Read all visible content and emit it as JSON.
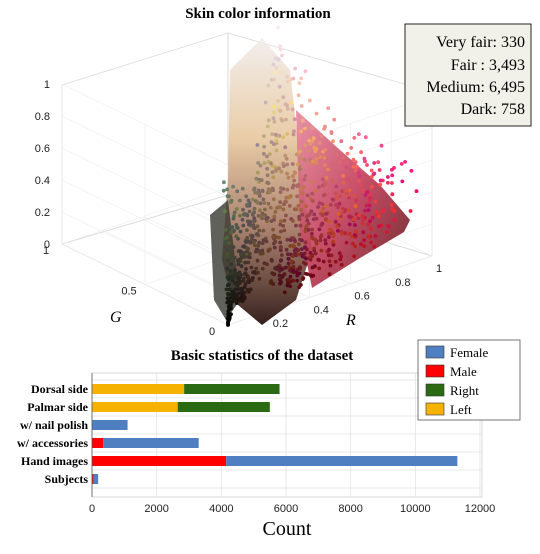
{
  "chart_data": [
    {
      "type": "scatter",
      "title": "Skin color information",
      "axes": {
        "r": {
          "label": "R",
          "ticks": [
            "0.2",
            "0.4",
            "0.6",
            "0.8",
            "1"
          ],
          "range": [
            0,
            1
          ]
        },
        "g": {
          "label": "G",
          "ticks": [
            "0",
            "0.5",
            "1"
          ],
          "range": [
            0,
            1
          ]
        },
        "b": {
          "label": "",
          "ticks": [
            "0",
            "0.2",
            "0.4",
            "0.6",
            "0.8",
            "1"
          ],
          "range": [
            0,
            1
          ]
        }
      },
      "info_box": [
        "Very fair: 330",
        "Fair  : 3,493",
        "Medium: 6,495",
        "Dark: 758"
      ],
      "grid": true
    },
    {
      "type": "bar",
      "orientation": "horizontal",
      "stacked": true,
      "title": "Basic statistics of the dataset",
      "xlabel": "Count",
      "xlim": [
        0,
        12000
      ],
      "xticks": [
        0,
        2000,
        4000,
        6000,
        8000,
        10000,
        12000
      ],
      "categories": [
        "Dorsal side",
        "Palmar side",
        "w/ nail polish",
        "w/ accessories",
        "Hand images",
        "Subjects"
      ],
      "legend_position": "top-right",
      "series": [
        {
          "name": "Female",
          "color": "#4f7fc1",
          "values": [
            0,
            0,
            1100,
            2950,
            7150,
            140
          ]
        },
        {
          "name": "Male",
          "color": "#ff0000",
          "values": [
            0,
            0,
            0,
            350,
            4150,
            50
          ]
        },
        {
          "name": "Right",
          "color": "#2a6a12",
          "values": [
            2950,
            2850,
            0,
            0,
            0,
            0
          ]
        },
        {
          "name": "Left",
          "color": "#f5b300",
          "values": [
            2850,
            2650,
            0,
            0,
            0,
            0
          ]
        }
      ]
    }
  ]
}
